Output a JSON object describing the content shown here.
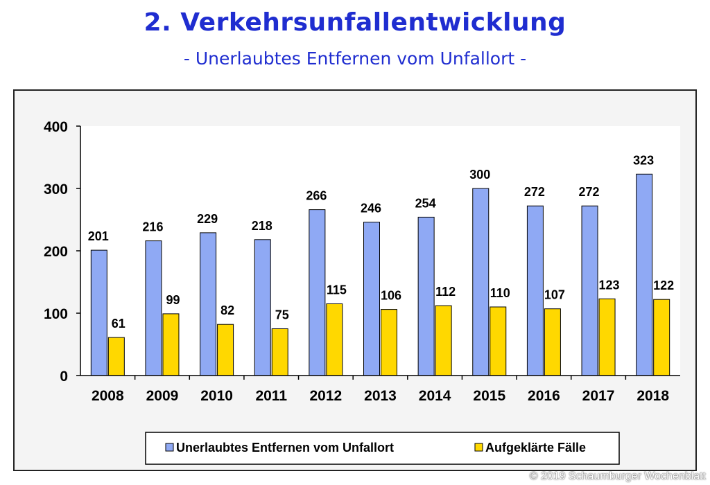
{
  "header": {
    "title": "2. Verkehrsunfallentwicklung",
    "subtitle": "- Unerlaubtes Entfernen vom Unfallort -"
  },
  "copyright": "© 2019 Schaumburger Wochenblatt",
  "colors": {
    "title": "#1f2dd0",
    "series_1": "#8fa9f4",
    "series_2": "#ffd800",
    "frame_bg": "#f4f4f4",
    "plot_bg": "#ffffff"
  },
  "chart_data": {
    "type": "bar",
    "categories": [
      "2008",
      "2009",
      "2010",
      "2011",
      "2012",
      "2013",
      "2014",
      "2015",
      "2016",
      "2017",
      "2018"
    ],
    "series": [
      {
        "name": "Unerlaubtes Entfernen vom Unfallort",
        "values": [
          201,
          216,
          229,
          218,
          266,
          246,
          254,
          300,
          272,
          272,
          323
        ]
      },
      {
        "name": "Aufgeklärte Fälle",
        "values": [
          61,
          99,
          82,
          75,
          115,
          106,
          112,
          110,
          107,
          123,
          122
        ]
      }
    ],
    "y_ticks": [
      0,
      100,
      200,
      300,
      400
    ],
    "ylim": [
      0,
      400
    ],
    "grid": false,
    "legend_position": "bottom",
    "data_labels": true
  }
}
